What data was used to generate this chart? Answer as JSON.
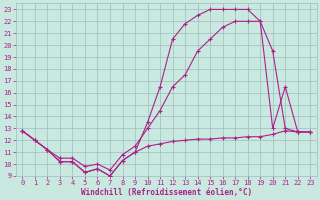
{
  "xlabel": "Windchill (Refroidissement éolien,°C)",
  "background_color": "#c8e8e0",
  "grid_color": "#a0bcc0",
  "line_color": "#aa2288",
  "xlim": [
    -0.5,
    23.5
  ],
  "ylim": [
    9,
    23.5
  ],
  "xticks": [
    0,
    1,
    2,
    3,
    4,
    5,
    6,
    7,
    8,
    9,
    10,
    11,
    12,
    13,
    14,
    15,
    16,
    17,
    18,
    19,
    20,
    21,
    22,
    23
  ],
  "yticks": [
    9,
    10,
    11,
    12,
    13,
    14,
    15,
    16,
    17,
    18,
    19,
    20,
    21,
    22,
    23
  ],
  "line1_x": [
    0,
    1,
    2,
    3,
    4,
    5,
    6,
    7,
    8,
    9,
    10,
    11,
    12,
    13,
    14,
    15,
    16,
    17,
    18,
    19,
    20,
    21,
    22,
    23
  ],
  "line1_y": [
    12.8,
    12.0,
    11.2,
    10.2,
    10.2,
    9.3,
    9.6,
    9.0,
    10.3,
    11.0,
    11.5,
    11.7,
    11.9,
    12.0,
    12.1,
    12.1,
    12.2,
    12.2,
    12.3,
    12.3,
    12.5,
    12.8,
    12.7,
    12.7
  ],
  "line2_x": [
    0,
    1,
    2,
    3,
    4,
    5,
    6,
    7,
    8,
    9,
    10,
    11,
    12,
    13,
    14,
    15,
    16,
    17,
    18,
    19,
    20,
    21,
    22,
    23
  ],
  "line2_y": [
    12.8,
    12.0,
    11.2,
    10.2,
    10.2,
    9.3,
    9.6,
    9.0,
    10.3,
    11.0,
    13.5,
    16.5,
    20.5,
    21.8,
    22.5,
    23.0,
    23.0,
    23.0,
    23.0,
    22.0,
    13.0,
    16.5,
    12.7,
    12.7
  ],
  "line3_x": [
    0,
    1,
    2,
    3,
    4,
    5,
    6,
    7,
    8,
    9,
    10,
    11,
    12,
    13,
    14,
    15,
    16,
    17,
    18,
    19,
    20,
    21,
    22,
    23
  ],
  "line3_y": [
    12.8,
    12.0,
    11.2,
    10.5,
    10.5,
    9.8,
    10.0,
    9.5,
    10.8,
    11.5,
    13.0,
    14.5,
    16.5,
    17.5,
    19.5,
    20.5,
    21.5,
    22.0,
    22.0,
    22.0,
    19.5,
    13.0,
    12.7,
    12.7
  ]
}
